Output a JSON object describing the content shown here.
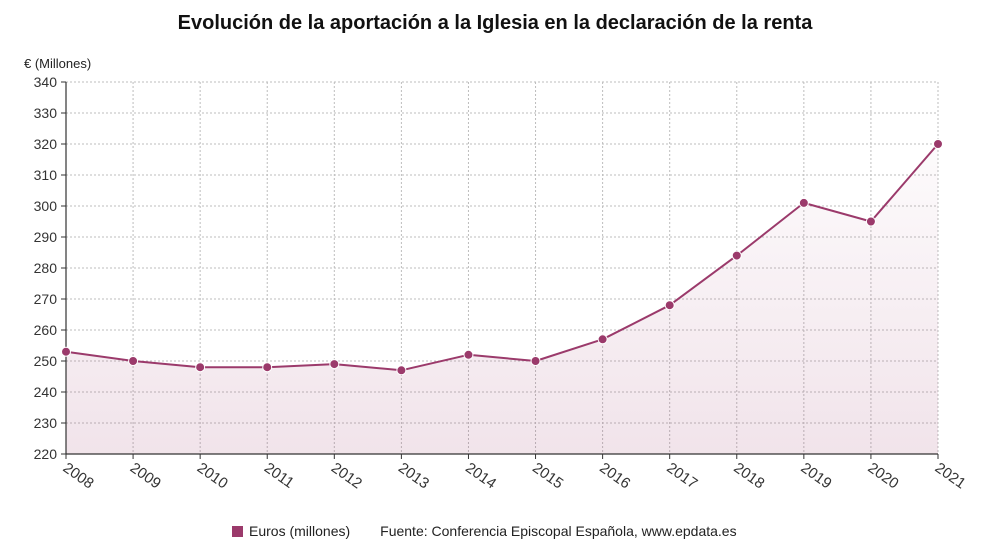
{
  "chart_data": {
    "type": "area",
    "title": "Evolución de la aportación a la Iglesia en la declaración de la renta",
    "ylabel": "€ (Millones)",
    "xlabel": "",
    "categories": [
      "2008",
      "2009",
      "2010",
      "2011",
      "2012",
      "2013",
      "2014",
      "2015",
      "2016",
      "2017",
      "2018",
      "2019",
      "2020",
      "2021"
    ],
    "series": [
      {
        "name": "Euros (millones)",
        "color": "#9b3a6b",
        "values": [
          253,
          250,
          248,
          248,
          249,
          247,
          252,
          250,
          257,
          268,
          284,
          301,
          295,
          320
        ]
      }
    ],
    "ylim": [
      220,
      340
    ],
    "yticks": [
      220,
      230,
      240,
      250,
      260,
      270,
      280,
      290,
      300,
      310,
      320,
      330,
      340
    ],
    "grid": true,
    "legend_position": "bottom"
  },
  "legend": {
    "series_label": "Euros (millones)",
    "source": "Fuente: Conferencia Episcopal Española, ",
    "source_site": "www.epdata.es"
  }
}
